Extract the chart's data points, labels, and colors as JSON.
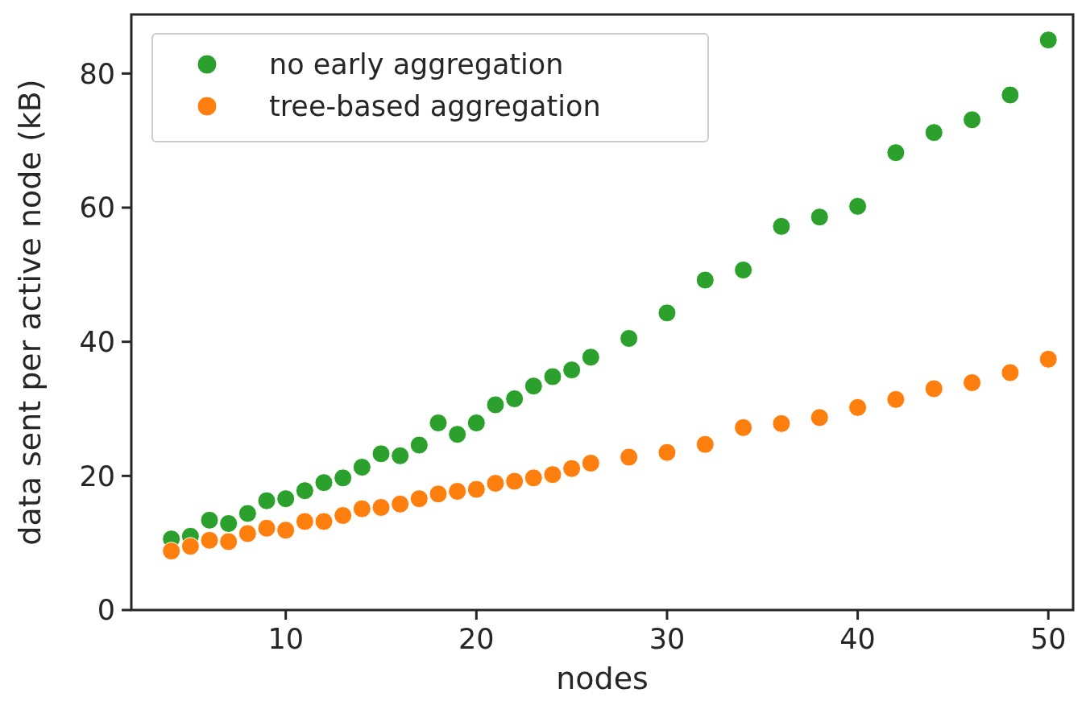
{
  "chart_data": {
    "type": "scatter",
    "xlabel": "nodes",
    "ylabel": "data sent per active node (kB)",
    "xlim": [
      1.9,
      51.3
    ],
    "ylim": [
      0,
      88.8
    ],
    "xticks": [
      10,
      20,
      30,
      40,
      50
    ],
    "yticks": [
      0,
      20,
      40,
      60,
      80
    ],
    "grid": false,
    "legend": "top left",
    "marker": "circle",
    "series": [
      {
        "name": "no early aggregation",
        "color": "#2ca02c",
        "x": [
          4,
          5,
          6,
          7,
          8,
          9,
          10,
          11,
          12,
          13,
          14,
          15,
          16,
          17,
          18,
          19,
          20,
          21,
          22,
          23,
          24,
          25,
          26,
          28,
          30,
          32,
          34,
          36,
          38,
          40,
          42,
          44,
          46,
          48,
          50
        ],
        "values": [
          10.6,
          11.0,
          13.4,
          12.9,
          14.4,
          16.3,
          16.6,
          17.8,
          19.0,
          19.7,
          21.3,
          23.3,
          23.0,
          24.6,
          27.9,
          26.2,
          27.9,
          30.6,
          31.5,
          33.4,
          34.8,
          35.8,
          37.7,
          40.5,
          44.3,
          49.2,
          50.7,
          57.2,
          58.6,
          60.2,
          68.2,
          71.2,
          73.1,
          76.8,
          85.0
        ]
      },
      {
        "name": "tree-based aggregation",
        "color": "#ff7f0e",
        "x": [
          4,
          5,
          6,
          7,
          8,
          9,
          10,
          11,
          12,
          13,
          14,
          15,
          16,
          17,
          18,
          19,
          20,
          21,
          22,
          23,
          24,
          25,
          26,
          28,
          30,
          32,
          34,
          36,
          38,
          40,
          42,
          44,
          46,
          48,
          50
        ],
        "values": [
          8.8,
          9.5,
          10.4,
          10.2,
          11.4,
          12.2,
          11.9,
          13.2,
          13.2,
          14.1,
          15.1,
          15.3,
          15.8,
          16.6,
          17.3,
          17.7,
          18.0,
          18.9,
          19.2,
          19.7,
          20.2,
          21.1,
          21.9,
          22.8,
          23.5,
          24.7,
          27.2,
          27.8,
          28.7,
          30.2,
          31.4,
          33.0,
          33.9,
          35.4,
          37.4
        ]
      }
    ]
  }
}
